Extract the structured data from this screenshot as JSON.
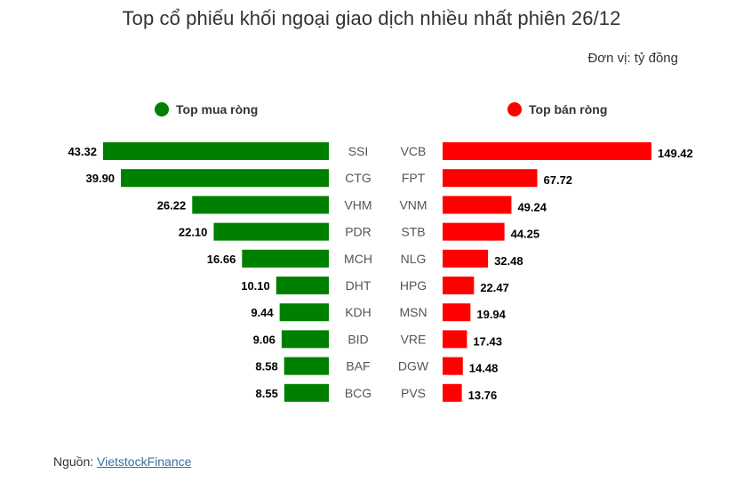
{
  "title": "Top cổ phiếu khối ngoại giao dịch nhiều nhất phiên 26/12",
  "unit_label": "Đơn vị: tỷ đồng",
  "legend": {
    "buy_label": "Top mua ròng",
    "sell_label": "Top bán ròng"
  },
  "colors": {
    "buy": "#008000",
    "sell": "#ff0000",
    "label": "#555555",
    "value": "#000000"
  },
  "source": {
    "prefix": "Nguồn: ",
    "link_text": "VietstockFinance"
  },
  "chart_data": [
    {
      "type": "bar",
      "orientation": "horizontal",
      "direction": "right-to-left",
      "series_name": "Top mua ròng",
      "categories": [
        "SSI",
        "CTG",
        "VHM",
        "PDR",
        "MCH",
        "DHT",
        "KDH",
        "BID",
        "BAF",
        "BCG"
      ],
      "values": [
        43.32,
        39.9,
        26.22,
        22.1,
        16.66,
        10.1,
        9.44,
        9.06,
        8.58,
        8.55
      ],
      "value_labels": [
        "43.32",
        "39.90",
        "26.22",
        "22.10",
        "16.66",
        "10.10",
        "9.44",
        "9.06",
        "8.58",
        "8.55"
      ],
      "xlim": [
        0,
        43.32
      ]
    },
    {
      "type": "bar",
      "orientation": "horizontal",
      "direction": "left-to-right",
      "series_name": "Top bán ròng",
      "categories": [
        "VCB",
        "FPT",
        "VNM",
        "STB",
        "NLG",
        "HPG",
        "MSN",
        "VRE",
        "DGW",
        "PVS"
      ],
      "values": [
        149.42,
        67.72,
        49.24,
        44.25,
        32.48,
        22.47,
        19.94,
        17.43,
        14.48,
        13.76
      ],
      "value_labels": [
        "149.42",
        "67.72",
        "49.24",
        "44.25",
        "32.48",
        "22.47",
        "19.94",
        "17.43",
        "14.48",
        "13.76"
      ],
      "xlim": [
        0,
        149.42
      ]
    }
  ]
}
